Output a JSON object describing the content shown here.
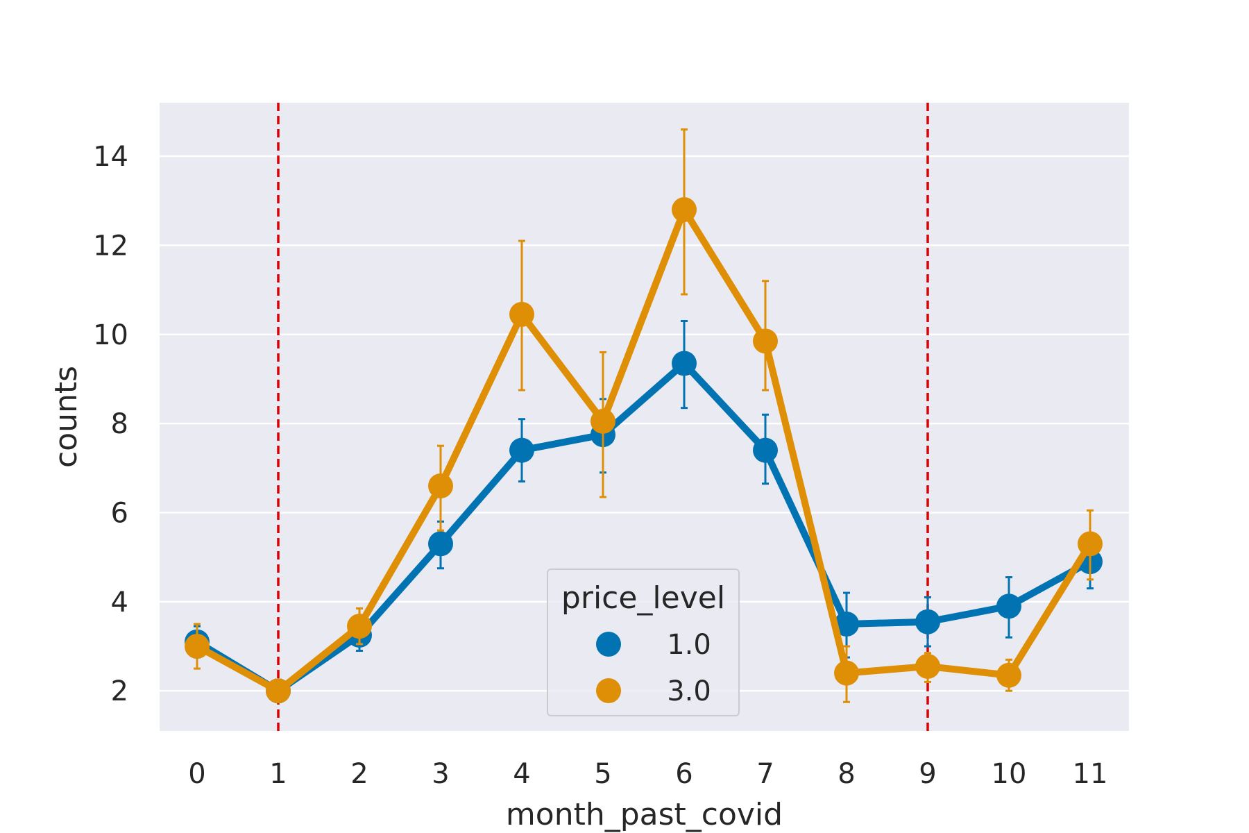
{
  "chart_data": {
    "type": "line",
    "title": "",
    "xlabel": "month_past_covid",
    "ylabel": "counts",
    "x": [
      0,
      1,
      2,
      3,
      4,
      5,
      6,
      7,
      8,
      9,
      10,
      11
    ],
    "x_tick_labels": [
      "0",
      "1",
      "2",
      "3",
      "4",
      "5",
      "6",
      "7",
      "8",
      "9",
      "10",
      "11"
    ],
    "yticks": [
      2,
      4,
      6,
      8,
      10,
      12,
      14
    ],
    "ylim": [
      1.1,
      15.2
    ],
    "grid": true,
    "legend": {
      "title": "price_level",
      "placement": "bottom-center"
    },
    "series": [
      {
        "name": "1.0",
        "color": "#0173b2",
        "values": [
          3.1,
          2.0,
          3.25,
          5.3,
          7.4,
          7.75,
          9.35,
          7.4,
          3.5,
          3.55,
          3.9,
          4.9
        ],
        "err_low": [
          2.75,
          1.75,
          2.9,
          4.75,
          6.7,
          6.9,
          8.35,
          6.65,
          2.75,
          3.0,
          3.2,
          4.3
        ],
        "err_high": [
          3.45,
          2.25,
          3.65,
          5.8,
          8.1,
          8.55,
          10.3,
          8.2,
          4.2,
          4.1,
          4.55,
          5.45
        ]
      },
      {
        "name": "3.0",
        "color": "#de8f05",
        "values": [
          3.0,
          2.0,
          3.45,
          6.6,
          10.45,
          8.05,
          12.8,
          9.85,
          2.4,
          2.55,
          2.35,
          5.3
        ],
        "err_low": [
          2.5,
          1.8,
          3.05,
          5.6,
          8.75,
          6.35,
          10.9,
          8.75,
          1.75,
          2.2,
          2.0,
          4.5
        ],
        "err_high": [
          3.5,
          2.2,
          3.85,
          7.5,
          12.1,
          9.6,
          14.6,
          11.2,
          3.0,
          2.85,
          2.7,
          6.05
        ]
      }
    ],
    "reference_lines": [
      {
        "axis": "x",
        "value": 1,
        "color": "#e00000",
        "style": "dashed"
      },
      {
        "axis": "x",
        "value": 9,
        "color": "#e00000",
        "style": "dashed"
      }
    ]
  }
}
